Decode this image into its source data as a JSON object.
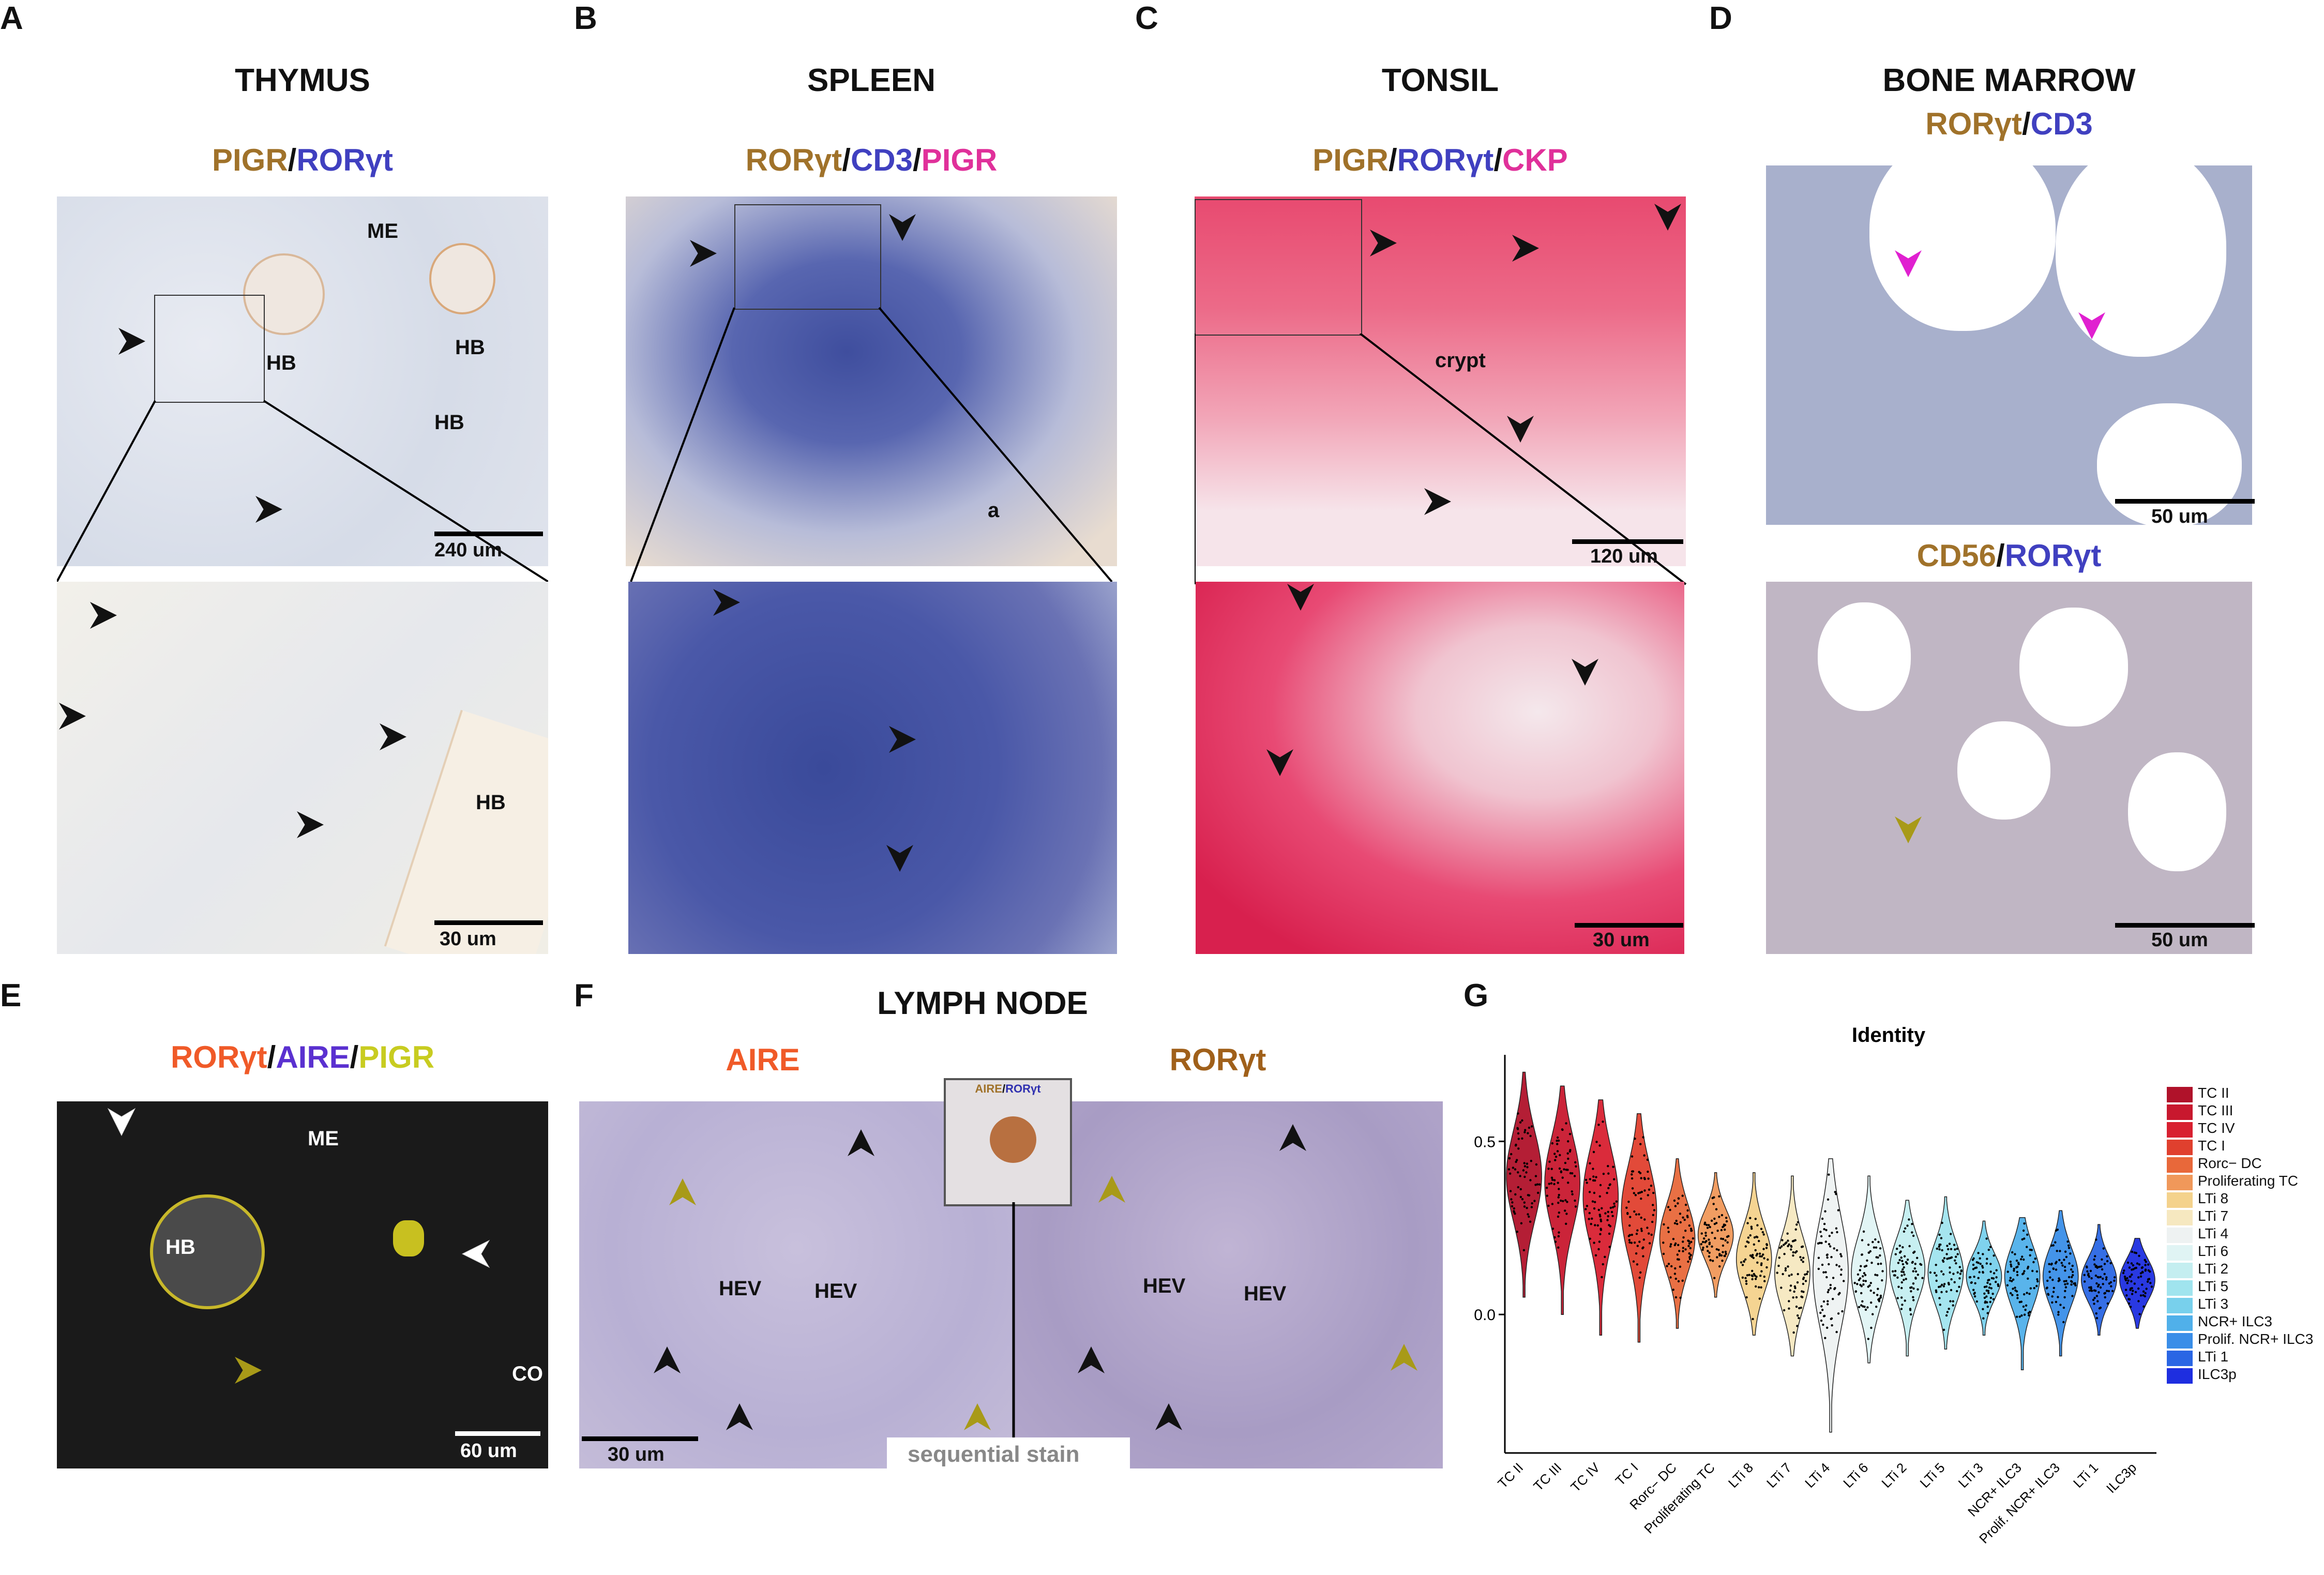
{
  "panel_letters": {
    "a": "A",
    "b": "B",
    "c": "C",
    "d": "D",
    "e": "E",
    "f": "F",
    "g": "G"
  },
  "titles": {
    "thymus": "THYMUS",
    "spleen": "SPLEEN",
    "tonsil": "TONSIL",
    "bone_marrow": "BONE MARROW",
    "lymph_node": "LYMPH NODE"
  },
  "stains": {
    "a": [
      {
        "t": "PIGR",
        "c": "#a0722a"
      },
      {
        "t": "/",
        "c": "#111"
      },
      {
        "t": "RORγt",
        "c": "#4040c0"
      }
    ],
    "b": [
      {
        "t": "RORγt",
        "c": "#a0722a"
      },
      {
        "t": "/",
        "c": "#111"
      },
      {
        "t": "CD3",
        "c": "#4040c0"
      },
      {
        "t": "/",
        "c": "#111"
      },
      {
        "t": "PIGR",
        "c": "#e0309a"
      }
    ],
    "c": [
      {
        "t": "PIGR",
        "c": "#a0722a"
      },
      {
        "t": "/",
        "c": "#111"
      },
      {
        "t": "RORγt",
        "c": "#4040c0"
      },
      {
        "t": "/",
        "c": "#111"
      },
      {
        "t": "CKP",
        "c": "#e0309a"
      }
    ],
    "d1": [
      {
        "t": "RORγt",
        "c": "#a0722a"
      },
      {
        "t": "/",
        "c": "#111"
      },
      {
        "t": "CD3",
        "c": "#4040c0"
      }
    ],
    "d2": [
      {
        "t": "CD56",
        "c": "#a0722a"
      },
      {
        "t": "/",
        "c": "#111"
      },
      {
        "t": "RORγt",
        "c": "#4040c0"
      }
    ],
    "e": [
      {
        "t": "RORγt",
        "c": "#f05a28"
      },
      {
        "t": "/",
        "c": "#111"
      },
      {
        "t": "AIRE",
        "c": "#5a30d0"
      },
      {
        "t": "/",
        "c": "#111"
      },
      {
        "t": "PIGR",
        "c": "#c8cc20"
      }
    ],
    "f_left": [
      {
        "t": "AIRE",
        "c": "#f05a28"
      }
    ],
    "f_right": [
      {
        "t": "RORγt",
        "c": "#a0601a"
      }
    ],
    "f_inset": [
      {
        "t": "AIRE",
        "c": "#a0722a"
      },
      {
        "t": "/",
        "c": "#111"
      },
      {
        "t": "RORγt",
        "c": "#3030b0"
      }
    ]
  },
  "annotations": {
    "a_me": "ME",
    "a_hb1": "HB",
    "a_hb2": "HB",
    "a_hb3": "HB",
    "a_hb4": "HB",
    "b_a": "a",
    "c_crypt": "crypt",
    "e_me": "ME",
    "e_hb": "HB",
    "e_co": "CO",
    "f_hev1": "HEV",
    "f_hev2": "HEV",
    "f_hev3": "HEV",
    "f_hev4": "HEV",
    "f_sequential": "sequential stain"
  },
  "scale_labels": {
    "a_top": "240 um",
    "a_bottom": "30 um",
    "c_top": "120 um",
    "c_bottom": "30 um",
    "d_top": "50 um",
    "d_bottom": "50 um",
    "e": "60 um",
    "f": "30 um"
  },
  "colors": {
    "black_arrow": "#111111",
    "magenta_arrow": "#e020d0",
    "olive_arrow": "#a89a18",
    "white_arrow": "#ffffff",
    "ihc_background": "#dfe3ec",
    "spleen_dense": "#3a4a9a",
    "tonsil_red": "#e0305a",
    "fluor_bg": "#1a1a1a"
  },
  "chart_data": {
    "type": "violin",
    "title": "Identity",
    "xlabel": "",
    "ylabel": "",
    "yticks": [
      0.0,
      0.5
    ],
    "ytick_labels": [
      "0.0",
      "0.5"
    ],
    "ylim": [
      -0.4,
      0.75
    ],
    "categories": [
      "TC II",
      "TC III",
      "TC IV",
      "TC I",
      "Rorc− DC",
      "Proliferating TC",
      "LTi 8",
      "LTi 7",
      "LTi 4",
      "LTi 6",
      "LTi 2",
      "LTi 5",
      "LTi 3",
      "NCR+ ILC3",
      "Prolif. NCR+ ILC3",
      "LTi 1",
      "ILC3p"
    ],
    "colors": [
      "#b0122a",
      "#c8182e",
      "#d82030",
      "#e0402e",
      "#e8683a",
      "#f0985a",
      "#f4d28c",
      "#f6e8c0",
      "#eef2f2",
      "#e0f4f4",
      "#c4eef0",
      "#a0e4ee",
      "#78d0ec",
      "#50b0ea",
      "#3a8ee8",
      "#2a66e4",
      "#1e2ee0"
    ],
    "medians": [
      0.4,
      0.38,
      0.34,
      0.3,
      0.22,
      0.23,
      0.16,
      0.12,
      0.12,
      0.12,
      0.13,
      0.12,
      0.11,
      0.11,
      0.11,
      0.1,
      0.1
    ],
    "mins": [
      0.05,
      0.0,
      -0.06,
      -0.08,
      -0.04,
      0.05,
      -0.06,
      -0.12,
      -0.34,
      -0.14,
      -0.12,
      -0.1,
      -0.06,
      -0.16,
      -0.12,
      -0.06,
      -0.04
    ],
    "maxs": [
      0.7,
      0.66,
      0.62,
      0.58,
      0.45,
      0.41,
      0.41,
      0.4,
      0.45,
      0.4,
      0.33,
      0.34,
      0.27,
      0.28,
      0.3,
      0.26,
      0.22
    ],
    "legend_position": "right",
    "legend": [
      "TC II",
      "TC III",
      "TC IV",
      "TC I",
      "Rorc− DC",
      "Proliferating TC",
      "LTi 8",
      "LTi 7",
      "LTi 4",
      "LTi 6",
      "LTi 2",
      "LTi 5",
      "LTi 3",
      "NCR+ ILC3",
      "Prolif. NCR+ ILC3",
      "LTi 1",
      "ILC3p"
    ]
  }
}
